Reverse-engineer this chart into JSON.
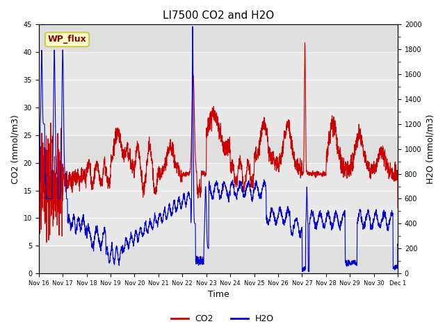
{
  "title": "LI7500 CO2 and H2O",
  "xlabel": "Time",
  "ylabel_left": "CO2 (mmol/m3)",
  "ylabel_right": "H2O (mmol/m3)",
  "ylim_left": [
    0,
    45
  ],
  "ylim_right": [
    0,
    2000
  ],
  "yticks_left": [
    0,
    5,
    10,
    15,
    20,
    25,
    30,
    35,
    40,
    45
  ],
  "yticks_right": [
    0,
    200,
    400,
    600,
    800,
    1000,
    1200,
    1400,
    1600,
    1800,
    2000
  ],
  "xtick_labels": [
    "Nov 16",
    "Nov 17",
    "Nov 18",
    "Nov 19",
    "Nov 20",
    "Nov 21",
    "Nov 22",
    "Nov 23",
    "Nov 24",
    "Nov 25",
    "Nov 26",
    "Nov 27",
    "Nov 28",
    "Nov 29",
    "Nov 30",
    "Dec 1"
  ],
  "co2_color": "#cc0000",
  "h2o_color": "#0000cc",
  "background_color": "#ffffff",
  "plot_bg_color": "#e8e8e8",
  "annotation_text": "WP_flux",
  "title_fontsize": 11,
  "axis_label_fontsize": 9,
  "tick_fontsize": 7,
  "legend_fontsize": 9,
  "linewidth": 0.8,
  "num_points": 4320
}
